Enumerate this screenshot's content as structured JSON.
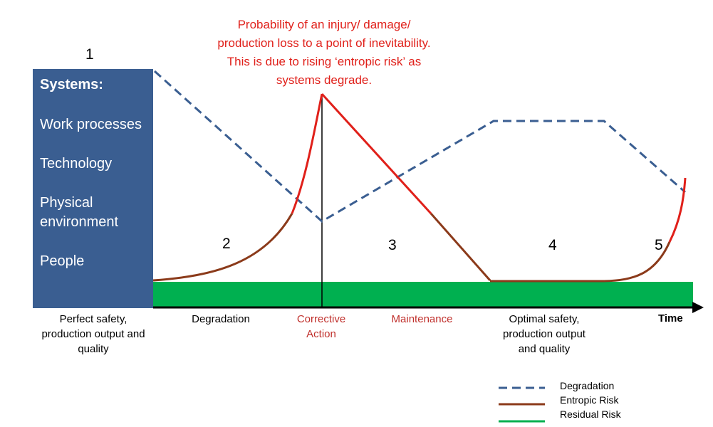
{
  "systems": {
    "title": "Systems:",
    "items": [
      "Work processes",
      "Technology",
      "Physical environment",
      "People"
    ]
  },
  "stages": [
    "1",
    "2",
    "3",
    "4",
    "5"
  ],
  "annotation": "Probability of an injury/ damage/ production loss to a point of inevitability. This is due to rising ‘entropic risk’ as systems degrade.",
  "x_labels": {
    "perfect": "Perfect safety, production output and quality",
    "degradation": "Degradation",
    "corrective": "Corrective Action",
    "maintenance": "Maintenance",
    "optimal": "Optimal safety, production output and quality",
    "time": "Time"
  },
  "legend": {
    "degradation": "Degradation",
    "entropic": "Entropic Risk",
    "residual": "Residual Risk"
  },
  "colors": {
    "systems_box": "#3a5e91",
    "degradation": "#3a5e91",
    "entropic_lower": "#8b3a1a",
    "entropic_upper": "#e0201a",
    "residual": "#00b050",
    "annotation": "#e0201a"
  }
}
